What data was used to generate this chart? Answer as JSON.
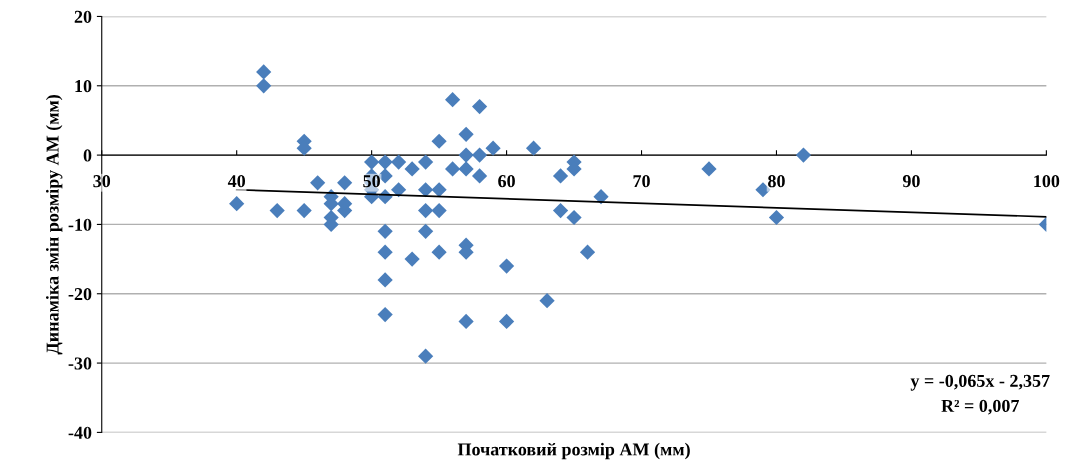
{
  "chart_data": {
    "type": "scatter",
    "xlabel": "Початковий розмір АМ (мм)",
    "ylabel": "Динаміка змін розміру АМ (мм)",
    "xlim": [
      30,
      100
    ],
    "xticks": [
      30,
      40,
      50,
      60,
      70,
      80,
      90,
      100
    ],
    "ylim": [
      -40,
      20
    ],
    "yticks": [
      -40,
      -30,
      -20,
      -10,
      0,
      10,
      20
    ],
    "grid": "y",
    "marker": "diamond",
    "series": [
      {
        "color": "#4a7ebb",
        "x": [
          40,
          42,
          42,
          43,
          45,
          45,
          45,
          46,
          47,
          47,
          47,
          47,
          48,
          48,
          48,
          50,
          50,
          50,
          50,
          50,
          51,
          51,
          51,
          51,
          51,
          51,
          51,
          52,
          52,
          53,
          53,
          54,
          54,
          54,
          54,
          54,
          55,
          55,
          55,
          55,
          56,
          56,
          57,
          57,
          57,
          57,
          57,
          57,
          58,
          58,
          58,
          59,
          60,
          60,
          62,
          63,
          64,
          64,
          65,
          65,
          65,
          66,
          67,
          75,
          79,
          80,
          82,
          100
        ],
        "values": [
          -7,
          12,
          10,
          -8,
          2,
          1,
          -8,
          -4,
          -6,
          -7,
          -9,
          -10,
          -4,
          -7,
          -8,
          -1,
          -3,
          -4,
          -5,
          -6,
          -1,
          -3,
          -6,
          -11,
          -14,
          -18,
          -23,
          -1,
          -5,
          -2,
          -15,
          -1,
          -5,
          -8,
          -11,
          -29,
          2,
          -5,
          -8,
          -14,
          8,
          -2,
          3,
          0,
          -2,
          -13,
          -14,
          -24,
          7,
          0,
          -3,
          1,
          -16,
          -24,
          1,
          -21,
          -3,
          -8,
          -1,
          -2,
          -9,
          -14,
          -6,
          -2,
          -5,
          -9,
          0,
          -10
        ]
      },
      {
        "type": "line",
        "color": "#000000",
        "marker": "none",
        "x": [
          40,
          100
        ],
        "values": [
          -5.0,
          -8.9
        ]
      }
    ],
    "annotations": [
      "y = -0,065x - 2,357",
      "R² = 0,007"
    ]
  }
}
